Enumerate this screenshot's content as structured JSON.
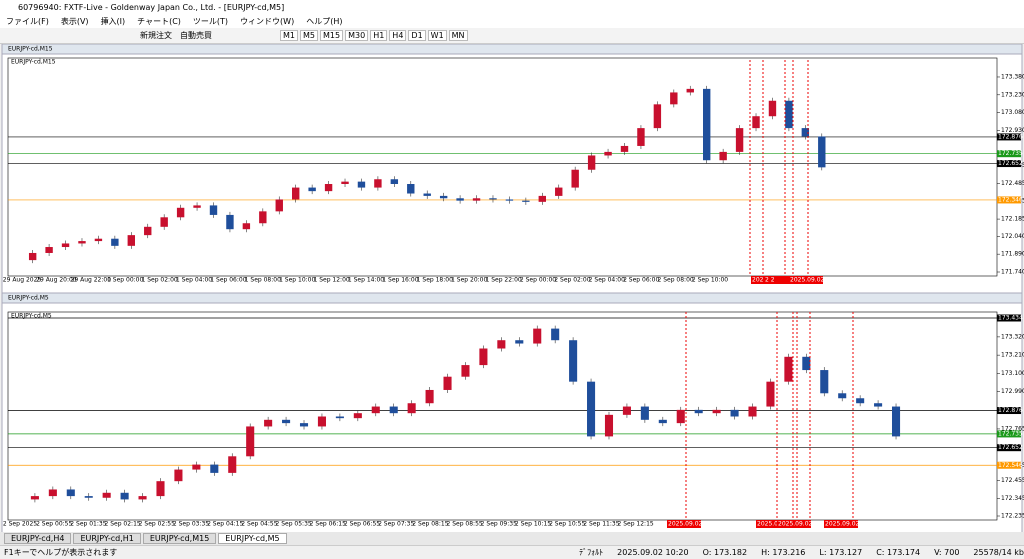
{
  "window": {
    "title": "60796940: FXTF-Live - Goldenway Japan Co., Ltd. - [EURJPY-cd,M5]"
  },
  "menu": [
    "ファイル(F)",
    "表示(V)",
    "挿入(I)",
    "チャート(C)",
    "ツール(T)",
    "ウィンドウ(W)",
    "ヘルプ(H)"
  ],
  "toolbar": {
    "new_order": "新規注文",
    "auto_trade": "自動売買",
    "periods": [
      "M1",
      "M5",
      "M15",
      "M30",
      "H1",
      "H4",
      "D1",
      "W1",
      "MN"
    ]
  },
  "charts": [
    {
      "window_title": "EURJPY-cd,M15",
      "label": "EURJPY-cd,M15",
      "ylim": [
        171.74,
        173.506
      ],
      "yticks": [
        {
          "value": 173.38,
          "label": "173.380"
        },
        {
          "value": 173.23,
          "label": "173.230"
        },
        {
          "value": 173.08,
          "label": "173.080"
        },
        {
          "value": 172.93,
          "label": "172.930"
        },
        {
          "value": 172.635,
          "label": "172.635"
        },
        {
          "value": 172.485,
          "label": "172.485"
        },
        {
          "value": 172.335,
          "label": "172.335"
        },
        {
          "value": 172.185,
          "label": "172.185"
        },
        {
          "value": 172.04,
          "label": "172.040"
        },
        {
          "value": 171.89,
          "label": "171.890"
        },
        {
          "value": 171.74,
          "label": "171.740"
        }
      ],
      "levels": [
        {
          "value": 172.876,
          "label": "172.876",
          "color": "#000000"
        },
        {
          "value": 172.735,
          "label": "172.735",
          "color": "#1a9a1a"
        },
        {
          "value": 172.652,
          "label": "172.652",
          "color": "#000000"
        },
        {
          "value": 172.346,
          "label": "172.346",
          "color": "#ff9900"
        }
      ],
      "x_labels": [
        "29 Aug 2025",
        "29 Aug 20:00",
        "29 Aug 22:00",
        "1 Sep 00:00",
        "1 Sep 02:00",
        "1 Sep 04:00",
        "1 Sep 06:00",
        "1 Sep 08:00",
        "1 Sep 10:00",
        "1 Sep 12:00",
        "1 Sep 14:00",
        "1 Sep 16:00",
        "1 Sep 18:00",
        "1 Sep 20:00",
        "1 Sep 22:00",
        "2 Sep 00:00",
        "2 Sep 02:00",
        "2 Sep 04:00",
        "2 Sep 06:00",
        "2 Sep 08:00",
        "2 Sep 10:00"
      ],
      "markers": [
        "2025.09.02 1",
        "2 2",
        "2025.09.02 16:40"
      ],
      "closes": [
        171.84,
        171.9,
        171.95,
        171.98,
        172.0,
        172.02,
        171.96,
        172.05,
        172.12,
        172.2,
        172.28,
        172.3,
        172.22,
        172.1,
        172.15,
        172.25,
        172.35,
        172.45,
        172.42,
        172.48,
        172.5,
        172.45,
        172.52,
        172.48,
        172.4,
        172.38,
        172.36,
        172.34,
        172.36,
        172.35,
        172.34,
        172.33,
        172.38,
        172.45,
        172.6,
        172.72,
        172.75,
        172.8,
        172.95,
        173.15,
        173.25,
        173.28,
        172.68,
        172.75,
        172.95,
        173.05,
        173.18,
        172.95,
        172.88,
        172.62
      ]
    },
    {
      "window_title": "EURJPY-cd,M5",
      "label": "EURJPY-cd,M5",
      "ylim": [
        172.24,
        173.446
      ],
      "yticks": [
        {
          "value": 173.32,
          "label": "173.320"
        },
        {
          "value": 173.21,
          "label": "173.210"
        },
        {
          "value": 173.1,
          "label": "173.100"
        },
        {
          "value": 172.99,
          "label": "172.990"
        },
        {
          "value": 172.765,
          "label": "172.765"
        },
        {
          "value": 172.545,
          "label": "172.545"
        },
        {
          "value": 172.455,
          "label": "172.455"
        },
        {
          "value": 172.345,
          "label": "172.345"
        },
        {
          "value": 172.24,
          "label": "172.235"
        }
      ],
      "levels": [
        {
          "value": 173.434,
          "label": "173.434",
          "color": "#000000"
        },
        {
          "value": 172.876,
          "label": "172.876",
          "color": "#000000"
        },
        {
          "value": 172.735,
          "label": "172.735",
          "color": "#1a9a1a"
        },
        {
          "value": 172.652,
          "label": "172.652",
          "color": "#000000"
        },
        {
          "value": 172.546,
          "label": "172.546",
          "color": "#ff9900"
        }
      ],
      "x_labels": [
        "2 Sep 2025",
        "2 Sep 00:55",
        "2 Sep 01:35",
        "2 Sep 02:15",
        "2 Sep 02:55",
        "2 Sep 03:35",
        "2 Sep 04:15",
        "2 Sep 04:55",
        "2 Sep 05:35",
        "2 Sep 06:15",
        "2 Sep 06:55",
        "2 Sep 07:35",
        "2 Sep 08:15",
        "2 Sep 08:55",
        "2 Sep 09:35",
        "2 Sep 10:15",
        "2 Sep 10:55",
        "2 Sep 11:35",
        "2 Sep 12:15"
      ],
      "markers": [
        "2025.09.02 13:35",
        "2025.0",
        "2025.09.02 15:00",
        "2025.09.02 16:40"
      ],
      "closes": [
        172.34,
        172.36,
        172.4,
        172.36,
        172.35,
        172.38,
        172.34,
        172.36,
        172.45,
        172.52,
        172.55,
        172.5,
        172.6,
        172.78,
        172.82,
        172.8,
        172.78,
        172.84,
        172.83,
        172.86,
        172.9,
        172.86,
        172.92,
        173.0,
        173.08,
        173.15,
        173.25,
        173.3,
        173.28,
        173.37,
        173.3,
        173.05,
        172.72,
        172.85,
        172.9,
        172.82,
        172.8,
        172.88,
        172.86,
        172.88,
        172.84,
        172.9,
        173.05,
        173.2,
        173.12,
        172.98,
        172.95,
        172.92,
        172.9,
        172.72
      ]
    }
  ],
  "tabs": [
    "EURJPY-cd,H4",
    "EURJPY-cd,H1",
    "EURJPY-cd,M15",
    "EURJPY-cd,M5"
  ],
  "status": {
    "help": "F1キーでヘルプが表示されます",
    "profile": "ﾃﾞﾌｫﾙﾄ",
    "time": "2025.09.02 10:20",
    "open": "O: 173.182",
    "high": "H: 173.216",
    "low": "L: 173.127",
    "close": "C: 173.174",
    "volume": "V: 700",
    "traffic": "25578/14 kb"
  }
}
